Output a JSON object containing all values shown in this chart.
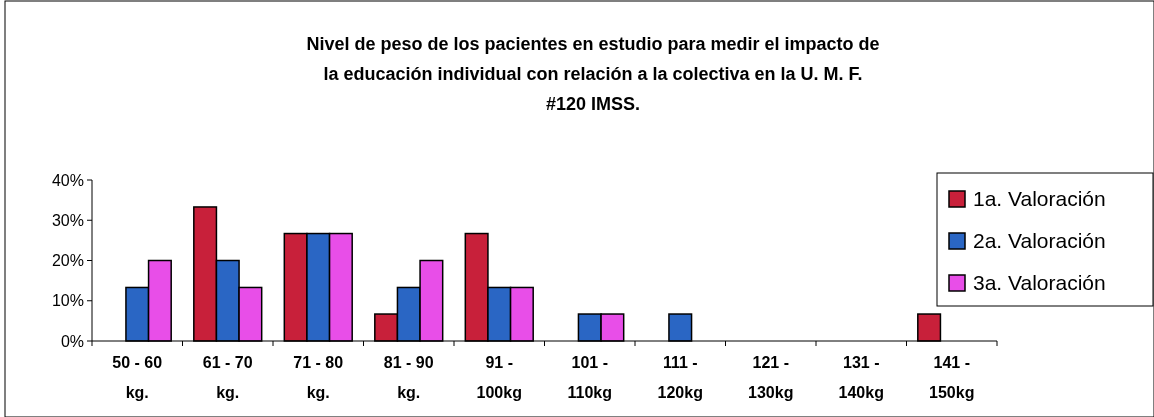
{
  "chart_data": {
    "type": "bar",
    "title": "Nivel de peso de los pacientes en estudio para medir el impacto de la educación individual con relación a la colectiva en la U. M. F. #120 IMSS.",
    "categories": [
      "50 - 60 kg.",
      "61 - 70 kg.",
      "71 - 80 kg.",
      "81 - 90 kg.",
      "91 - 100kg",
      "101 - 110kg",
      "111 - 120kg",
      "121 - 130kg",
      "131 - 140kg",
      "141 - 150kg"
    ],
    "series": [
      {
        "name": "1a. Valoración",
        "color": "#c8203a",
        "values": [
          0,
          33.3,
          26.7,
          6.7,
          26.7,
          0,
          0,
          0,
          0,
          6.7
        ]
      },
      {
        "name": "2a. Valoración",
        "color": "#2a66c4",
        "values": [
          13.3,
          20,
          26.7,
          13.3,
          13.3,
          6.7,
          6.7,
          0,
          0,
          0
        ]
      },
      {
        "name": "3a. Valoración",
        "color": "#e84ee8",
        "values": [
          20,
          13.3,
          26.7,
          20,
          13.3,
          6.7,
          0,
          0,
          0,
          0
        ]
      }
    ],
    "ylim": [
      0,
      40
    ],
    "yticks": [
      {
        "value": 0,
        "label": "0%"
      },
      {
        "value": 10,
        "label": "10%"
      },
      {
        "value": 20,
        "label": "20%"
      },
      {
        "value": 30,
        "label": "30%"
      },
      {
        "value": 40,
        "label": "40%"
      }
    ],
    "grid": false,
    "legend": "right"
  }
}
